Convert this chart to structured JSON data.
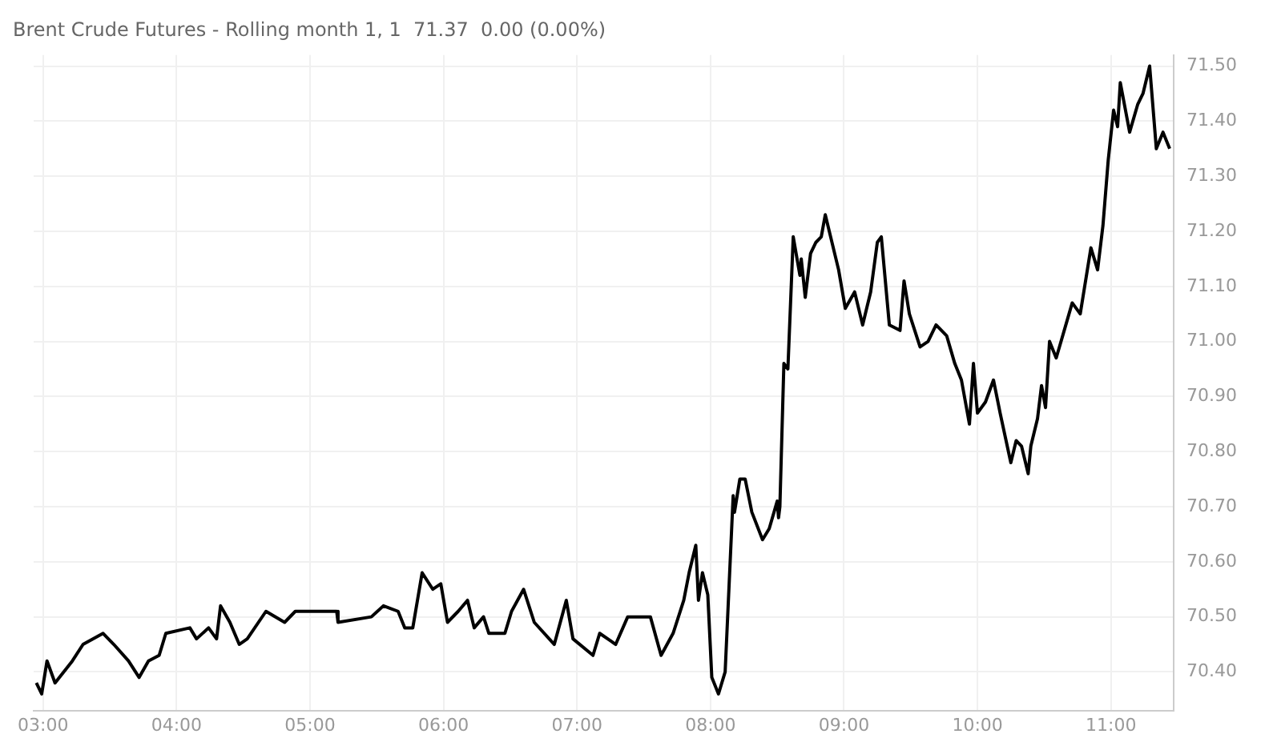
{
  "chart_data": {
    "type": "line",
    "title": "Brent Crude Futures - Rolling month 1, 1  71.37  0.00 (0.00%)",
    "series": [
      {
        "color": "#000000",
        "x": [
          2.95,
          2.99,
          3.03,
          3.09,
          3.22,
          3.3,
          3.45,
          3.53,
          3.64,
          3.72,
          3.79,
          3.87,
          3.92,
          4.1,
          4.15,
          4.24,
          4.3,
          4.33,
          4.4,
          4.47,
          4.53,
          4.67,
          4.81,
          4.89,
          5.2,
          5.21,
          5.46,
          5.55,
          5.66,
          5.71,
          5.77,
          5.84,
          5.92,
          5.98,
          6.03,
          6.11,
          6.18,
          6.23,
          6.3,
          6.34,
          6.46,
          6.51,
          6.6,
          6.68,
          6.83,
          6.92,
          6.97,
          7.12,
          7.17,
          7.29,
          7.38,
          7.4,
          7.55,
          7.63,
          7.72,
          7.8,
          7.84,
          7.89,
          7.91,
          7.94,
          7.98,
          8.01,
          8.06,
          8.11,
          8.17,
          8.18,
          8.22,
          8.26,
          8.31,
          8.39,
          8.44,
          8.5,
          8.51,
          8.52,
          8.55,
          8.58,
          8.62,
          8.67,
          8.68,
          8.71,
          8.75,
          8.79,
          8.83,
          8.86,
          8.96,
          9.01,
          9.08,
          9.14,
          9.17,
          9.2,
          9.25,
          9.28,
          9.34,
          9.42,
          9.45,
          9.49,
          9.57,
          9.63,
          9.69,
          9.77,
          9.83,
          9.88,
          9.94,
          9.97,
          10.0,
          10.06,
          10.12,
          10.17,
          10.25,
          10.29,
          10.33,
          10.38,
          10.4,
          10.45,
          10.48,
          10.51,
          10.54,
          10.59,
          10.65,
          10.71,
          10.77,
          10.85,
          10.9,
          10.94,
          10.98,
          11.02,
          11.05,
          11.07,
          11.14,
          11.2,
          11.24,
          11.29,
          11.34,
          11.39,
          11.44
        ],
        "values": [
          70.38,
          70.36,
          70.42,
          70.38,
          70.42,
          70.45,
          70.47,
          70.45,
          70.42,
          70.39,
          70.42,
          70.43,
          70.47,
          70.48,
          70.46,
          70.48,
          70.46,
          70.52,
          70.49,
          70.45,
          70.46,
          70.51,
          70.49,
          70.51,
          70.51,
          70.49,
          70.5,
          70.52,
          70.51,
          70.48,
          70.48,
          70.58,
          70.55,
          70.56,
          70.49,
          70.51,
          70.53,
          70.48,
          70.5,
          70.47,
          70.47,
          70.51,
          70.55,
          70.49,
          70.45,
          70.53,
          70.46,
          70.43,
          70.47,
          70.45,
          70.5,
          70.5,
          70.5,
          70.43,
          70.47,
          70.53,
          70.58,
          70.63,
          70.53,
          70.58,
          70.54,
          70.39,
          70.36,
          70.4,
          70.72,
          70.69,
          70.75,
          70.75,
          70.69,
          70.64,
          70.66,
          70.71,
          70.68,
          70.7,
          70.96,
          70.95,
          71.19,
          71.12,
          71.15,
          71.08,
          71.16,
          71.18,
          71.19,
          71.23,
          71.13,
          71.06,
          71.09,
          71.03,
          71.06,
          71.09,
          71.18,
          71.19,
          71.03,
          71.02,
          71.11,
          71.05,
          70.99,
          71.0,
          71.03,
          71.01,
          70.96,
          70.93,
          70.85,
          70.96,
          70.87,
          70.89,
          70.93,
          70.87,
          70.78,
          70.82,
          70.81,
          70.76,
          70.81,
          70.86,
          70.92,
          70.88,
          71.0,
          70.97,
          71.02,
          71.07,
          71.05,
          71.17,
          71.13,
          71.21,
          71.33,
          71.42,
          71.39,
          71.47,
          71.38,
          71.43,
          71.45,
          71.5,
          71.35,
          71.38,
          71.35
        ]
      }
    ],
    "xlim": [
      2.93,
      11.47
    ],
    "xticks": [
      {
        "value": 3,
        "label": "03:00"
      },
      {
        "value": 4,
        "label": "04:00"
      },
      {
        "value": 5,
        "label": "05:00"
      },
      {
        "value": 6,
        "label": "06:00"
      },
      {
        "value": 7,
        "label": "07:00"
      },
      {
        "value": 8,
        "label": "08:00"
      },
      {
        "value": 9,
        "label": "09:00"
      },
      {
        "value": 10,
        "label": "10:00"
      },
      {
        "value": 11,
        "label": "11:00"
      }
    ],
    "ylim": [
      70.33,
      71.52
    ],
    "yticks": [
      {
        "value": 70.4,
        "label": "70.40"
      },
      {
        "value": 70.5,
        "label": "70.50"
      },
      {
        "value": 70.6,
        "label": "70.60"
      },
      {
        "value": 70.7,
        "label": "70.70"
      },
      {
        "value": 70.8,
        "label": "70.80"
      },
      {
        "value": 70.9,
        "label": "70.90"
      },
      {
        "value": 71.0,
        "label": "71.00"
      },
      {
        "value": 71.1,
        "label": "71.10"
      },
      {
        "value": 71.2,
        "label": "71.20"
      },
      {
        "value": 71.3,
        "label": "71.30"
      },
      {
        "value": 71.4,
        "label": "71.40"
      },
      {
        "value": 71.5,
        "label": "71.50"
      }
    ],
    "grid": true,
    "legend": false,
    "marker": "none",
    "line_style": "solid"
  }
}
